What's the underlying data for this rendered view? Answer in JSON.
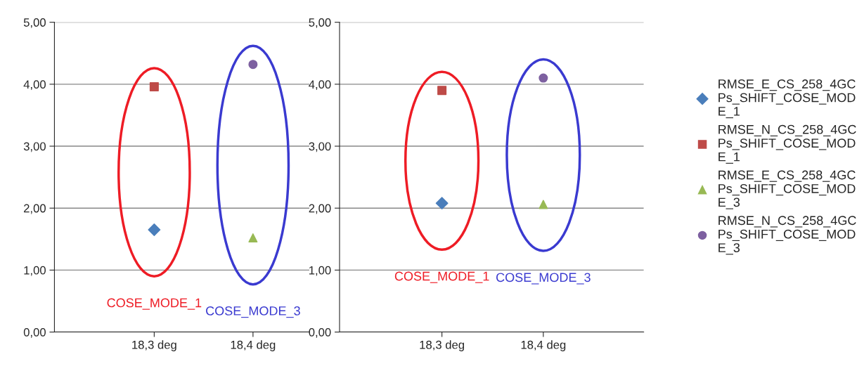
{
  "chart_data": [
    {
      "type": "scatter",
      "categories": [
        "18,3 deg",
        "18,4 deg"
      ],
      "series": [
        {
          "name": "RMSE_E_CS_258_4GCPs_SHIFT_COSE_MODE_1",
          "color": "#4a7ebb",
          "marker": "diamond",
          "values": [
            1.65,
            null
          ]
        },
        {
          "name": "RMSE_N_CS_258_4GCPs_SHIFT_COSE_MODE_1",
          "color": "#be4b48",
          "marker": "square",
          "values": [
            3.96,
            null
          ]
        },
        {
          "name": "RMSE_E_CS_258_4GCPs_SHIFT_COSE_MODE_3",
          "color": "#98b954",
          "marker": "triangle",
          "values": [
            null,
            1.52
          ]
        },
        {
          "name": "RMSE_N_CS_258_4GCPs_SHIFT_COSE_MODE_3",
          "color": "#7d60a0",
          "marker": "circle",
          "values": [
            null,
            4.32
          ]
        }
      ],
      "ylim": [
        0,
        5
      ],
      "yticks": [
        {
          "value": 0,
          "label": "0,00"
        },
        {
          "value": 1,
          "label": "1,00"
        },
        {
          "value": 2,
          "label": "2,00"
        },
        {
          "value": 3,
          "label": "3,00"
        },
        {
          "value": 4,
          "label": "4,00"
        },
        {
          "value": 5,
          "label": "5,00"
        }
      ],
      "grid": "y",
      "legend": "right",
      "annotations": [
        "COSE_MODE_1",
        "COSE_MODE_3"
      ]
    },
    {
      "type": "scatter",
      "categories": [
        "18,3 deg",
        "18,4 deg"
      ],
      "series": [
        {
          "color": "#4a7ebb",
          "marker": "diamond",
          "values": [
            2.08,
            null
          ]
        },
        {
          "color": "#be4b48",
          "marker": "square",
          "values": [
            3.9,
            null
          ]
        },
        {
          "color": "#98b954",
          "marker": "triangle",
          "values": [
            null,
            2.06
          ]
        },
        {
          "color": "#7d60a0",
          "marker": "circle",
          "values": [
            null,
            4.1
          ]
        }
      ],
      "ylim": [
        0,
        5
      ],
      "yticks": [
        {
          "value": 0,
          "label": "0,00"
        },
        {
          "value": 1,
          "label": "1,00"
        },
        {
          "value": 2,
          "label": "2,00"
        },
        {
          "value": 3,
          "label": "3,00"
        },
        {
          "value": 4,
          "label": "4,00"
        },
        {
          "value": 5,
          "label": "5,00"
        }
      ],
      "grid": "y",
      "annotations": [
        "COSE_MODE_1",
        "COSE_MODE_3"
      ]
    }
  ]
}
